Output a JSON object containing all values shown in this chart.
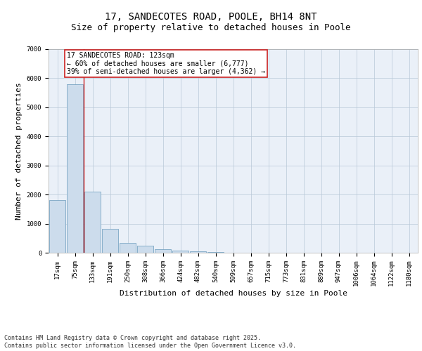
{
  "title1": "17, SANDECOTES ROAD, POOLE, BH14 8NT",
  "title2": "Size of property relative to detached houses in Poole",
  "xlabel": "Distribution of detached houses by size in Poole",
  "ylabel": "Number of detached properties",
  "categories": [
    "17sqm",
    "75sqm",
    "133sqm",
    "191sqm",
    "250sqm",
    "308sqm",
    "366sqm",
    "424sqm",
    "482sqm",
    "540sqm",
    "599sqm",
    "657sqm",
    "715sqm",
    "773sqm",
    "831sqm",
    "889sqm",
    "947sqm",
    "1006sqm",
    "1064sqm",
    "1122sqm",
    "1180sqm"
  ],
  "values": [
    1800,
    5800,
    2100,
    820,
    350,
    230,
    120,
    80,
    50,
    20,
    10,
    5,
    3,
    2,
    1,
    0,
    0,
    0,
    0,
    0,
    0
  ],
  "bar_color": "#ccdcec",
  "bar_edge_color": "#6899bb",
  "vline_color": "#cc2222",
  "vline_x": 1.5,
  "annotation_text": "17 SANDECOTES ROAD: 123sqm\n← 60% of detached houses are smaller (6,777)\n39% of semi-detached houses are larger (4,362) →",
  "annotation_box_facecolor": "#ffffff",
  "annotation_box_edgecolor": "#cc2222",
  "ylim": [
    0,
    7000
  ],
  "yticks": [
    0,
    1000,
    2000,
    3000,
    4000,
    5000,
    6000,
    7000
  ],
  "bg_color": "#eaf0f8",
  "footer_text": "Contains HM Land Registry data © Crown copyright and database right 2025.\nContains public sector information licensed under the Open Government Licence v3.0.",
  "title_fontsize": 10,
  "subtitle_fontsize": 9,
  "tick_fontsize": 6.5,
  "label_fontsize": 8,
  "annotation_fontsize": 7,
  "footer_fontsize": 6
}
